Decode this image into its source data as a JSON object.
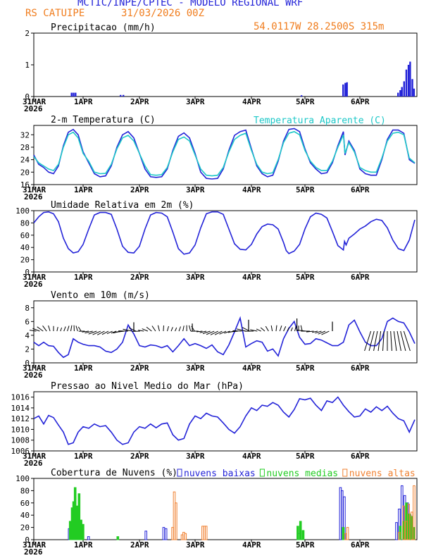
{
  "header": {
    "title": "MCTIC/INPE/CPTEC - MODELO REGIONAL WRF",
    "location": "RS CATUIPE",
    "run": "31/03/2026 00Z",
    "coords": "54.0117W 28.2500S 315m"
  },
  "colors": {
    "blue": "#2323d8",
    "cyan": "#1ec8c8",
    "green": "#22cc22",
    "orange": "#f08030",
    "black": "#000000"
  },
  "chart_data": [
    {
      "type": "bar",
      "title": "Precipitacao (mm/h)",
      "ylim": [
        0,
        2
      ],
      "yticks": [
        "0",
        "1",
        "2"
      ],
      "xticks": [
        "31MAR",
        "1APR",
        "2APR",
        "3APR",
        "4APR",
        "5APR",
        "6APR"
      ],
      "xsub": "2026",
      "bars": [
        [
          0.75,
          0.12
        ],
        [
          0.79,
          0.12
        ],
        [
          0.83,
          0.12
        ],
        [
          1.65,
          0.05
        ],
        [
          1.7,
          0.05
        ],
        [
          4.92,
          0.04
        ],
        [
          5.68,
          0.38
        ],
        [
          5.72,
          0.43
        ],
        [
          5.75,
          0.45
        ],
        [
          6.68,
          0.12
        ],
        [
          6.72,
          0.2
        ],
        [
          6.75,
          0.3
        ],
        [
          6.79,
          0.48
        ],
        [
          6.83,
          0.85
        ],
        [
          6.87,
          1.0
        ],
        [
          6.9,
          1.1
        ],
        [
          6.94,
          0.55
        ],
        [
          6.97,
          0.25
        ]
      ]
    },
    {
      "type": "line",
      "title": "2-m Temperatura (C)",
      "legend": "Temperatura Aparente (C)",
      "ylim": [
        16,
        35
      ],
      "yticks": [
        "16",
        "20",
        "24",
        "28",
        "32"
      ],
      "xticks": [
        "31MAR",
        "1APR",
        "2APR",
        "3APR",
        "4APR",
        "5APR",
        "6APR"
      ],
      "xsub": "2026",
      "series": [
        {
          "name": "Temperatura",
          "x": [
            0,
            0.1,
            0.2,
            0.3,
            0.4,
            0.5,
            0.6,
            0.7,
            0.8,
            0.9,
            1.0,
            1.1,
            1.2,
            1.3,
            1.4,
            1.5,
            1.6,
            1.7,
            1.8,
            1.9,
            2.0,
            2.1,
            2.2,
            2.3,
            2.4,
            2.5,
            2.6,
            2.7,
            2.8,
            2.9,
            3.0,
            3.1,
            3.2,
            3.3,
            3.4,
            3.5,
            3.6,
            3.7,
            3.8,
            3.9,
            4.0,
            4.1,
            4.2,
            4.3,
            4.4,
            4.5,
            4.6,
            4.7,
            4.8,
            4.9,
            5.0,
            5.1,
            5.2,
            5.3,
            5.4,
            5.5,
            5.6,
            5.7,
            5.73,
            5.8,
            5.9,
            6.0,
            6.1,
            6.2,
            6.3,
            6.4,
            6.5,
            6.6,
            6.7,
            6.8,
            6.9,
            7.0
          ],
          "values": [
            25.5,
            22.5,
            21.5,
            20,
            19.5,
            22,
            28.5,
            32.8,
            33.7,
            32,
            26.5,
            23,
            19.5,
            18.5,
            18.8,
            22,
            28,
            32,
            33,
            31,
            26,
            21,
            18.5,
            18.3,
            18.5,
            21,
            27,
            31.5,
            32.6,
            31,
            26,
            20,
            18,
            17.8,
            18,
            21,
            27,
            31.8,
            33,
            33.5,
            27.5,
            22,
            19.5,
            18.5,
            19,
            23.5,
            30,
            33.7,
            34,
            33,
            27.5,
            23,
            21,
            19.5,
            19.8,
            23,
            28.5,
            33,
            25.5,
            30,
            27,
            21,
            19.5,
            19,
            19,
            24,
            30.5,
            33.5,
            33.5,
            32.5,
            24,
            22.8
          ]
        },
        {
          "name": "Temperatura Aparente",
          "x": [
            0,
            0.1,
            0.2,
            0.3,
            0.4,
            0.5,
            0.6,
            0.7,
            0.8,
            0.9,
            1.0,
            1.1,
            1.2,
            1.3,
            1.4,
            1.5,
            1.6,
            1.7,
            1.8,
            1.9,
            2.0,
            2.1,
            2.2,
            2.3,
            2.4,
            2.5,
            2.6,
            2.7,
            2.8,
            2.9,
            3.0,
            3.1,
            3.2,
            3.3,
            3.4,
            3.5,
            3.6,
            3.7,
            3.8,
            3.9,
            4.0,
            4.1,
            4.2,
            4.3,
            4.4,
            4.5,
            4.6,
            4.7,
            4.8,
            4.9,
            5.0,
            5.1,
            5.2,
            5.3,
            5.4,
            5.5,
            5.6,
            5.7,
            5.73,
            5.8,
            5.9,
            6.0,
            6.1,
            6.2,
            6.3,
            6.4,
            6.5,
            6.6,
            6.7,
            6.8,
            6.9,
            7.0
          ],
          "values": [
            25,
            23,
            22,
            21,
            20.5,
            22.5,
            28,
            32,
            32.8,
            31,
            26,
            23.5,
            20,
            19.5,
            19.6,
            22.5,
            27.5,
            31,
            31.8,
            30,
            26,
            22,
            19.2,
            19,
            19.2,
            21.5,
            26.5,
            30.5,
            31.3,
            30,
            25.5,
            21,
            19,
            18.8,
            19,
            21.5,
            26.5,
            30.5,
            31.8,
            32.5,
            27,
            22.5,
            20,
            19.5,
            19.8,
            24,
            29.5,
            32.5,
            33,
            32,
            27,
            23.5,
            21.5,
            20.5,
            20.5,
            23.5,
            28,
            32,
            26,
            29.5,
            26.5,
            21.5,
            20.5,
            20,
            20,
            24.5,
            30,
            32.5,
            32.8,
            32,
            24.5,
            23
          ]
        }
      ]
    },
    {
      "type": "line",
      "title": "Umidade Relativa em 2m (%)",
      "ylim": [
        0,
        100
      ],
      "yticks": [
        "0",
        "20",
        "40",
        "60",
        "80",
        "100"
      ],
      "xticks": [
        "31MAR",
        "1APR",
        "2APR",
        "3APR",
        "4APR",
        "5APR",
        "6APR"
      ],
      "xsub": "2026",
      "series": [
        {
          "name": "Umidade",
          "x": [
            0,
            0.1,
            0.2,
            0.3,
            0.4,
            0.5,
            0.6,
            0.7,
            0.8,
            0.9,
            1.0,
            1.1,
            1.2,
            1.3,
            1.4,
            1.5,
            1.6,
            1.7,
            1.8,
            1.9,
            2.0,
            2.1,
            2.2,
            2.3,
            2.4,
            2.5,
            2.6,
            2.7,
            2.8,
            2.9,
            3.0,
            3.1,
            3.2,
            3.3,
            3.4,
            3.5,
            3.6,
            3.7,
            3.8,
            3.9,
            4.0,
            4.1,
            4.2,
            4.3,
            4.4,
            4.5,
            4.6,
            4.65,
            4.7,
            4.8,
            4.9,
            5.0,
            5.1,
            5.2,
            5.3,
            5.4,
            5.5,
            5.6,
            5.7,
            5.72,
            5.75,
            5.8,
            5.9,
            6.0,
            6.1,
            6.2,
            6.3,
            6.4,
            6.5,
            6.6,
            6.7,
            6.8,
            6.9,
            7.0
          ],
          "values": [
            80,
            90,
            97,
            98,
            95,
            82,
            55,
            38,
            31,
            33,
            45,
            70,
            93,
            97,
            97,
            94,
            70,
            42,
            32,
            31,
            42,
            70,
            93,
            97,
            96,
            90,
            65,
            38,
            29,
            31,
            44,
            72,
            95,
            98,
            98,
            94,
            70,
            46,
            37,
            36,
            45,
            62,
            74,
            78,
            77,
            70,
            48,
            35,
            30,
            34,
            45,
            70,
            90,
            96,
            94,
            88,
            66,
            43,
            36,
            50,
            44,
            55,
            62,
            70,
            75,
            82,
            86,
            84,
            72,
            52,
            38,
            35,
            52,
            85
          ]
        }
      ]
    },
    {
      "type": "line",
      "title": "Vento em 10m (m/s)",
      "ylim": [
        0,
        9
      ],
      "yticks": [
        "0",
        "2",
        "4",
        "6",
        "8"
      ],
      "xticks": [
        "31MAR",
        "1APR",
        "2APR",
        "3APR",
        "4APR",
        "5APR",
        "6APR"
      ],
      "xsub": "2026",
      "series": [
        {
          "name": "Vento",
          "x": [
            0,
            0.1,
            0.2,
            0.3,
            0.4,
            0.5,
            0.6,
            0.7,
            0.8,
            0.9,
            1.0,
            1.1,
            1.2,
            1.3,
            1.4,
            1.5,
            1.6,
            1.7,
            1.8,
            1.9,
            2.0,
            2.1,
            2.2,
            2.3,
            2.4,
            2.5,
            2.6,
            2.7,
            2.8,
            2.9,
            3.0,
            3.1,
            3.2,
            3.3,
            3.4,
            3.5,
            3.6,
            3.7,
            3.8,
            3.9,
            4.0,
            4.1,
            4.2,
            4.3,
            4.4,
            4.5,
            4.6,
            4.7,
            4.8,
            4.9,
            5.0,
            5.1,
            5.2,
            5.3,
            5.4,
            5.5,
            5.6,
            5.7,
            5.8,
            5.9,
            6.0,
            6.1,
            6.2,
            6.3,
            6.4,
            6.5,
            6.6,
            6.7,
            6.8,
            6.9,
            7.0
          ],
          "values": [
            3,
            2.5,
            3,
            2.5,
            2.4,
            1.5,
            0.8,
            1.2,
            3.5,
            3,
            2.7,
            2.5,
            2.5,
            2.3,
            1.7,
            1.5,
            2,
            3,
            5.5,
            4.2,
            2.5,
            2.3,
            2.6,
            2.5,
            2.2,
            2.5,
            1.6,
            2.5,
            3.5,
            2.5,
            2.8,
            2.5,
            2.1,
            2.6,
            1.6,
            1.2,
            2.6,
            4.5,
            6.5,
            2.3,
            2.8,
            3.2,
            3,
            1.7,
            2,
            1,
            3.5,
            5,
            6,
            3.7,
            2.7,
            2.8,
            3.5,
            3.3,
            2.9,
            2.5,
            2.5,
            3,
            5.5,
            6.2,
            4.5,
            3,
            2.5,
            2.5,
            3.5,
            6,
            6.5,
            6,
            5.8,
            4.5,
            2.8
          ]
        }
      ],
      "arrows_note": "wind direction vectors along ~4.5 m/s band"
    },
    {
      "type": "line",
      "title": "Pressao ao Nivel Medio do Mar (hPa)",
      "ylim": [
        1006,
        1017
      ],
      "yticks": [
        "1006",
        "1008",
        "1010",
        "1012",
        "1014",
        "1016"
      ],
      "xticks": [
        "31MAR",
        "1APR",
        "2APR",
        "3APR",
        "4APR",
        "5APR",
        "6APR"
      ],
      "xsub": "2026",
      "series": [
        {
          "name": "Pressao",
          "x": [
            0,
            0.1,
            0.2,
            0.3,
            0.4,
            0.5,
            0.6,
            0.7,
            0.8,
            0.9,
            1.0,
            1.1,
            1.2,
            1.3,
            1.4,
            1.5,
            1.6,
            1.7,
            1.8,
            1.9,
            2.0,
            2.1,
            2.2,
            2.3,
            2.4,
            2.5,
            2.6,
            2.7,
            2.8,
            2.9,
            3.0,
            3.1,
            3.2,
            3.3,
            3.4,
            3.5,
            3.6,
            3.7,
            3.8,
            3.9,
            4.0,
            4.1,
            4.2,
            4.3,
            4.4,
            4.5,
            4.6,
            4.7,
            4.8,
            4.9,
            5.0,
            5.1,
            5.2,
            5.3,
            5.4,
            5.5,
            5.6,
            5.7,
            5.8,
            5.9,
            6.0,
            6.1,
            6.2,
            6.3,
            6.4,
            6.5,
            6.6,
            6.7,
            6.8,
            6.9,
            7.0
          ],
          "values": [
            1012,
            1012.5,
            1011,
            1012.6,
            1012.2,
            1010.8,
            1009.5,
            1007.2,
            1007.5,
            1009.5,
            1010.5,
            1010.2,
            1011,
            1010.5,
            1010.7,
            1009.5,
            1008,
            1007.2,
            1007.5,
            1009.5,
            1010.5,
            1010.2,
            1011,
            1010.3,
            1011,
            1011.2,
            1009,
            1008,
            1008.3,
            1011,
            1012.5,
            1012,
            1013,
            1012.5,
            1012.3,
            1011.2,
            1010,
            1009.3,
            1010.5,
            1012.5,
            1014,
            1013.5,
            1014.5,
            1014.3,
            1015,
            1014.5,
            1013.2,
            1012.3,
            1013.7,
            1015.7,
            1015.5,
            1015.8,
            1014.5,
            1013.5,
            1015.3,
            1015,
            1016,
            1014.5,
            1013.3,
            1012.3,
            1012.5,
            1013.8,
            1013.2,
            1014.2,
            1013.5,
            1014.3,
            1013,
            1012,
            1011.6,
            1009.5,
            1011.8
          ]
        }
      ]
    },
    {
      "type": "bar",
      "title": "Cobertura de Nuvens (%)",
      "ylim": [
        0,
        100
      ],
      "yticks": [
        "0",
        "20",
        "40",
        "60",
        "80",
        "100"
      ],
      "xticks": [
        "31MAR",
        "1APR",
        "2APR",
        "3APR",
        "4APR",
        "5APR",
        "6APR"
      ],
      "xsub": "2026",
      "legend": [
        {
          "label": "nuvens baixas",
          "color": "#2323d8"
        },
        {
          "label": "nuvens medias",
          "color": "#22cc22"
        },
        {
          "label": "nuvens altas",
          "color": "#f08030"
        }
      ],
      "series": [
        {
          "name": "nuvens baixas",
          "x": [
            0.7,
            0.73,
            0.77,
            0.8,
            1.08,
            2.1,
            2.42,
            2.46,
            4.88,
            5.63,
            5.66,
            5.7,
            6.65,
            6.7,
            6.75,
            6.8,
            6.85,
            6.9,
            6.95
          ],
          "values": [
            18,
            27,
            25,
            20,
            5,
            14,
            20,
            18,
            10,
            85,
            80,
            70,
            28,
            50,
            88,
            72,
            60,
            40,
            15
          ]
        },
        {
          "name": "nuvens medias",
          "x": [
            0.72,
            0.76,
            0.79,
            0.82,
            0.86,
            0.9,
            0.94,
            0.98,
            1.6,
            4.85,
            4.9,
            4.95,
            5.68,
            6.72,
            6.78,
            6.83,
            6.88,
            6.92,
            6.97
          ],
          "values": [
            30,
            52,
            62,
            85,
            55,
            75,
            32,
            25,
            5,
            22,
            30,
            15,
            20,
            22,
            30,
            60,
            42,
            38,
            20
          ]
        },
        {
          "name": "nuvens altas",
          "x": [
            2.58,
            2.61,
            2.64,
            2.75,
            2.78,
            2.81,
            3.12,
            3.15,
            3.18,
            5.72,
            5.76,
            6.7,
            6.78,
            6.83,
            6.87,
            6.93,
            6.97
          ],
          "values": [
            20,
            78,
            60,
            8,
            12,
            10,
            22,
            22,
            22,
            10,
            20,
            12,
            55,
            30,
            58,
            45,
            88
          ]
        }
      ]
    }
  ]
}
